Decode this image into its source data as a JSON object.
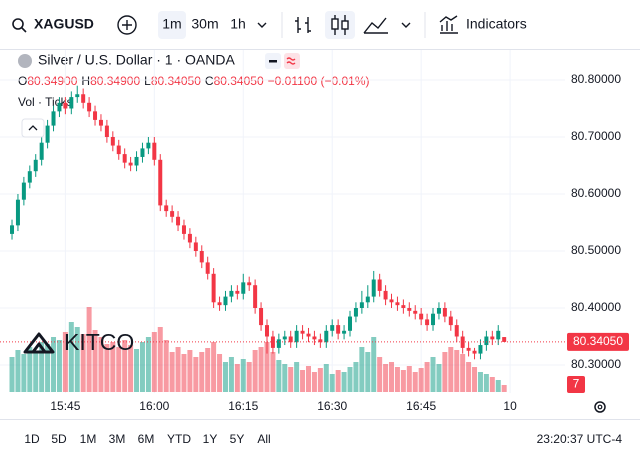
{
  "toolbar": {
    "symbol": "XAGUSD",
    "intervals": [
      "1m",
      "30m",
      "1h"
    ],
    "indicators": "Indicators"
  },
  "chart_data": {
    "type": "candlestick",
    "title": "Silver / U.S. Dollar · 1 · OANDA",
    "ohlc_legend": [
      {
        "key": "O",
        "value": "80.34900"
      },
      {
        "key": "H",
        "value": "80.34900"
      },
      {
        "key": "L",
        "value": "80.34050"
      },
      {
        "key": "C",
        "value": "80.34050"
      }
    ],
    "change": "−0.01100 (−0.01%)",
    "volume_label": "Vol · Ticks",
    "watermark": "KITCO",
    "candles": {
      "open": [
        80.53,
        80.545,
        80.59,
        80.62,
        80.64,
        80.66,
        80.69,
        80.72,
        80.745,
        80.76,
        80.75,
        80.77,
        80.775,
        80.76,
        80.745,
        80.73,
        80.72,
        80.7,
        80.685,
        80.67,
        80.655,
        80.65,
        80.665,
        80.68,
        80.69,
        80.66,
        80.58,
        80.57,
        80.56,
        80.545,
        80.53,
        80.515,
        80.5,
        80.48,
        80.46,
        80.41,
        80.405,
        80.42,
        80.43,
        80.425,
        80.445,
        80.44,
        80.4,
        80.37,
        80.35,
        80.33,
        80.345,
        80.35,
        80.34,
        80.36,
        80.355,
        80.35,
        80.345,
        80.34,
        80.36,
        80.37,
        80.355,
        80.36,
        80.385,
        80.4,
        80.41,
        80.42,
        80.45,
        80.43,
        80.415,
        80.41,
        80.405,
        80.4,
        80.395,
        80.39,
        80.38,
        80.37,
        80.39,
        80.4,
        80.385,
        80.37,
        80.35,
        80.33,
        80.325,
        80.32,
        80.335,
        80.35,
        80.345,
        80.349
      ],
      "high": [
        80.555,
        80.6,
        80.63,
        80.65,
        80.67,
        80.7,
        80.73,
        80.755,
        80.77,
        80.77,
        80.78,
        80.79,
        80.785,
        80.77,
        80.755,
        80.74,
        80.73,
        80.71,
        80.695,
        80.68,
        80.665,
        80.675,
        80.69,
        80.7,
        80.7,
        80.67,
        80.59,
        80.58,
        80.57,
        80.555,
        80.54,
        80.525,
        80.51,
        80.49,
        80.47,
        80.42,
        80.43,
        80.44,
        80.44,
        80.46,
        80.455,
        80.45,
        80.41,
        80.38,
        80.36,
        80.355,
        80.36,
        80.36,
        80.37,
        80.37,
        80.365,
        80.36,
        80.355,
        80.37,
        80.38,
        80.38,
        80.37,
        80.395,
        80.41,
        80.43,
        80.44,
        80.465,
        80.46,
        80.44,
        80.425,
        80.42,
        80.415,
        80.41,
        80.405,
        80.4,
        80.39,
        80.4,
        80.41,
        80.41,
        80.395,
        80.38,
        80.36,
        80.34,
        80.33,
        80.345,
        80.36,
        80.36,
        80.37,
        80.349
      ],
      "low": [
        80.52,
        80.535,
        80.58,
        80.61,
        80.63,
        80.65,
        80.68,
        80.71,
        80.735,
        80.74,
        80.74,
        80.76,
        80.75,
        80.735,
        80.72,
        80.71,
        80.69,
        80.675,
        80.66,
        80.645,
        80.64,
        80.64,
        80.655,
        80.67,
        80.65,
        80.57,
        80.56,
        80.55,
        80.535,
        80.52,
        80.505,
        80.49,
        80.47,
        80.45,
        80.4,
        80.395,
        80.395,
        80.41,
        80.415,
        80.415,
        80.43,
        80.39,
        80.36,
        80.32,
        80.32,
        80.32,
        80.335,
        80.33,
        80.33,
        80.345,
        80.34,
        80.335,
        80.33,
        80.33,
        80.35,
        80.345,
        80.345,
        80.35,
        80.375,
        80.39,
        80.4,
        80.41,
        80.42,
        80.405,
        80.4,
        80.395,
        80.39,
        80.385,
        80.38,
        80.37,
        80.36,
        80.36,
        80.38,
        80.375,
        80.36,
        80.34,
        80.32,
        80.315,
        80.31,
        80.31,
        80.325,
        80.335,
        80.335,
        80.3405
      ],
      "close": [
        80.545,
        80.59,
        80.62,
        80.64,
        80.66,
        80.69,
        80.72,
        80.745,
        80.76,
        80.75,
        80.77,
        80.775,
        80.76,
        80.745,
        80.73,
        80.72,
        80.7,
        80.685,
        80.67,
        80.655,
        80.65,
        80.665,
        80.68,
        80.69,
        80.66,
        80.58,
        80.57,
        80.56,
        80.545,
        80.53,
        80.515,
        80.5,
        80.48,
        80.46,
        80.41,
        80.405,
        80.42,
        80.43,
        80.425,
        80.445,
        80.44,
        80.4,
        80.37,
        80.35,
        80.33,
        80.345,
        80.35,
        80.34,
        80.36,
        80.355,
        80.35,
        80.345,
        80.34,
        80.36,
        80.37,
        80.355,
        80.36,
        80.385,
        80.4,
        80.41,
        80.42,
        80.45,
        80.43,
        80.415,
        80.41,
        80.405,
        80.4,
        80.395,
        80.39,
        80.38,
        80.37,
        80.39,
        80.4,
        80.385,
        80.37,
        80.35,
        80.33,
        80.325,
        80.32,
        80.335,
        80.35,
        80.345,
        80.36,
        80.3405
      ]
    },
    "up_color": "#089981",
    "down_color": "#f23645",
    "volume": {
      "values": [
        35,
        42,
        38,
        45,
        40,
        50,
        48,
        55,
        52,
        60,
        70,
        65,
        58,
        85,
        62,
        55,
        48,
        50,
        45,
        52,
        47,
        43,
        50,
        55,
        60,
        65,
        52,
        40,
        45,
        38,
        42,
        35,
        40,
        44,
        50,
        38,
        30,
        35,
        28,
        33,
        30,
        42,
        45,
        50,
        40,
        32,
        28,
        25,
        30,
        22,
        26,
        20,
        24,
        28,
        18,
        22,
        20,
        25,
        30,
        45,
        40,
        55,
        35,
        28,
        30,
        25,
        22,
        26,
        20,
        24,
        30,
        35,
        28,
        40,
        45,
        42,
        38,
        30,
        25,
        20,
        18,
        15,
        12,
        7
      ],
      "ylim": [
        0,
        100
      ]
    },
    "ylim": [
      80.25,
      80.85
    ],
    "yticks": [
      {
        "value": 80.8,
        "label": "80.80000"
      },
      {
        "value": 80.7,
        "label": "80.70000"
      },
      {
        "value": 80.6,
        "label": "80.60000"
      },
      {
        "value": 80.5,
        "label": "80.50000"
      },
      {
        "value": 80.4,
        "label": "80.40000"
      },
      {
        "value": 80.3,
        "label": "80.30000"
      }
    ],
    "xlim": [
      -0.34,
      85.5
    ],
    "xticks": [
      {
        "value": 9,
        "label": "15:45"
      },
      {
        "value": 24,
        "label": "16:00"
      },
      {
        "value": 39,
        "label": "16:15"
      },
      {
        "value": 54,
        "label": "16:30"
      },
      {
        "value": 69,
        "label": "16:45"
      },
      {
        "value": 84,
        "label": "10"
      }
    ],
    "grid": true
  },
  "range_buttons": [
    "1D",
    "5D",
    "1M",
    "3M",
    "6M",
    "YTD",
    "1Y",
    "5Y",
    "All"
  ],
  "clock": "23:20:37 UTC-4"
}
